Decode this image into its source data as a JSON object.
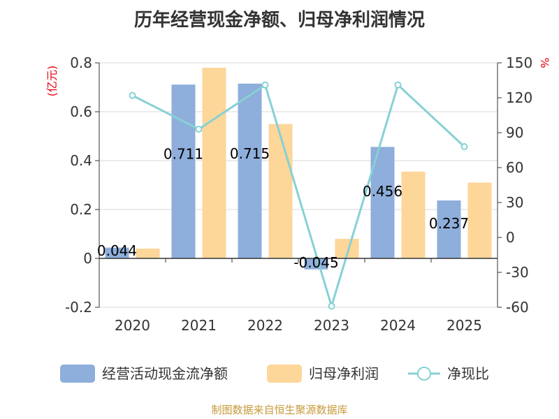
{
  "title": "历年经营现金净额、归母净利润情况",
  "source": "制图数据来自恒生聚源数据库",
  "chart_data": {
    "type": "bar",
    "categories": [
      "2020",
      "2021",
      "2022",
      "2023",
      "2024",
      "2025"
    ],
    "left_axis": {
      "unit": "(亿元)",
      "ylim": [
        -0.2,
        0.8
      ],
      "ticks": [
        "-0.2",
        "0",
        "0.2",
        "0.4",
        "0.6",
        "0.8"
      ]
    },
    "right_axis": {
      "unit": "%",
      "ylim": [
        -60,
        150
      ],
      "ticks": [
        "-60",
        "-30",
        "0",
        "30",
        "60",
        "90",
        "120",
        "150"
      ]
    },
    "series": [
      {
        "name": "经营活动现金流净额",
        "type": "bar",
        "axis": "left",
        "color": "#8eaedb",
        "values": [
          0.044,
          0.711,
          0.715,
          -0.045,
          0.456,
          0.237
        ],
        "labels": [
          "0.044",
          "0.711",
          "0.715",
          "-0.045",
          "0.456",
          "0.237"
        ]
      },
      {
        "name": "归母净利润",
        "type": "bar",
        "axis": "left",
        "color": "#fdd699",
        "values": [
          0.04,
          0.78,
          0.55,
          0.08,
          0.355,
          0.31
        ]
      },
      {
        "name": "净现比",
        "type": "line",
        "axis": "right",
        "color": "#86d1d4",
        "values": [
          122,
          93,
          131,
          -59,
          131,
          78
        ]
      }
    ],
    "grid": "horizontal",
    "legend_position": "bottom"
  }
}
